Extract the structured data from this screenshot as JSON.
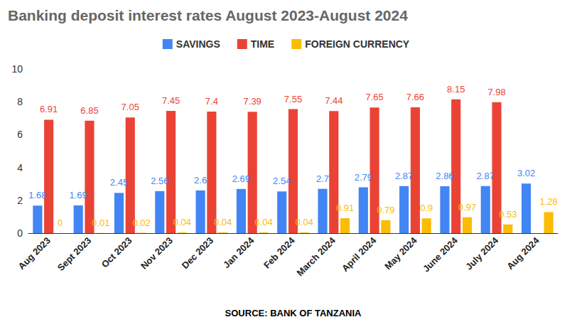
{
  "chart_data": {
    "type": "bar",
    "title": "Banking deposit interest rates August 2023-August 2024",
    "xlabel": "SOURCE: BANK OF TANZANIA",
    "categories": [
      "Aug 2023",
      "Sept 2023",
      "Oct 2023",
      "Nov 2023",
      "Dec 2023",
      "Jan 2024",
      "Feb 2024",
      "March 2024",
      "April 2024",
      "May 2024",
      "June 2024",
      "July 2024",
      "Aug 2024"
    ],
    "series": [
      {
        "name": "SAVINGS",
        "color": "#4285f4",
        "values": [
          1.68,
          1.69,
          2.45,
          2.56,
          2.6,
          2.69,
          2.54,
          2.7,
          2.79,
          2.87,
          2.86,
          2.87,
          3.02
        ]
      },
      {
        "name": "TIME",
        "color": "#ea4335",
        "values": [
          6.91,
          6.85,
          7.05,
          7.45,
          7.4,
          7.39,
          7.55,
          7.44,
          7.65,
          7.66,
          8.15,
          7.98,
          null
        ]
      },
      {
        "name": "FOREIGN CURRENCY",
        "color": "#fbbc04",
        "values": [
          0,
          0.01,
          0.02,
          0.04,
          0.04,
          0.04,
          0.04,
          0.91,
          0.79,
          0.9,
          0.97,
          0.53,
          1.28
        ]
      }
    ],
    "ylim": [
      0,
      10
    ],
    "yticks": [
      0,
      2,
      4,
      6,
      8,
      10
    ],
    "grid": false,
    "legend": "top",
    "data_labels": true
  }
}
